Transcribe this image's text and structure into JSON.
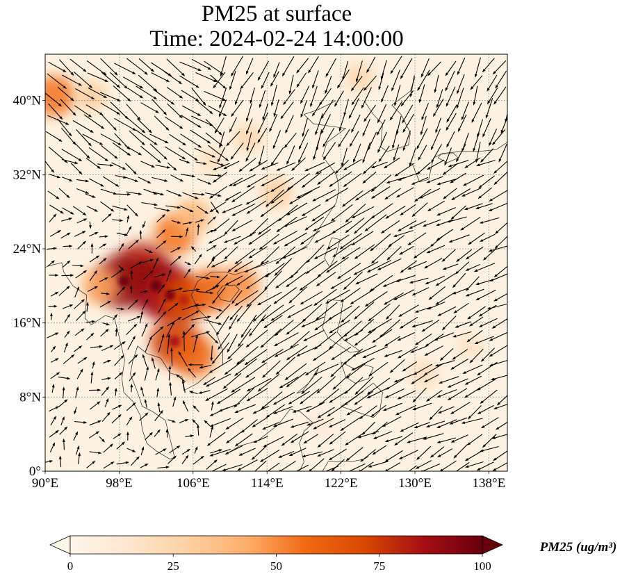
{
  "title": {
    "line1": "PM25 at surface",
    "line2": "Time: 2024-02-24 14:00:00"
  },
  "map": {
    "lon_range": [
      90,
      140
    ],
    "lat_range": [
      0,
      45
    ],
    "lon_ticks": [
      {
        "value": 90,
        "label": "90°E"
      },
      {
        "value": 98,
        "label": "98°E"
      },
      {
        "value": 106,
        "label": "106°E"
      },
      {
        "value": 114,
        "label": "114°E"
      },
      {
        "value": 122,
        "label": "122°E"
      },
      {
        "value": 130,
        "label": "130°E"
      },
      {
        "value": 138,
        "label": "138°E"
      }
    ],
    "lat_ticks": [
      {
        "value": 0,
        "label": "0°"
      },
      {
        "value": 8,
        "label": "8°N"
      },
      {
        "value": 16,
        "label": "16°N"
      },
      {
        "value": 24,
        "label": "24°N"
      },
      {
        "value": 32,
        "label": "32°N"
      },
      {
        "value": 40,
        "label": "40°N"
      }
    ],
    "gridlines": true,
    "background_color": "#fdf2e2",
    "hotspots": [
      {
        "lon": 91,
        "lat": 40.5,
        "value": 55
      },
      {
        "lon": 95,
        "lat": 40.5,
        "value": 30
      },
      {
        "lon": 104,
        "lat": 25.5,
        "value": 55
      },
      {
        "lon": 106,
        "lat": 27.5,
        "value": 40
      },
      {
        "lon": 100.5,
        "lat": 22.0,
        "value": 80
      },
      {
        "lon": 102,
        "lat": 20.0,
        "value": 90
      },
      {
        "lon": 98.5,
        "lat": 20.5,
        "value": 90
      },
      {
        "lon": 103.5,
        "lat": 19.0,
        "value": 85
      },
      {
        "lon": 105,
        "lat": 18.5,
        "value": 70
      },
      {
        "lon": 108,
        "lat": 19.5,
        "value": 60
      },
      {
        "lon": 111,
        "lat": 20.0,
        "value": 50
      },
      {
        "lon": 104,
        "lat": 14.0,
        "value": 75
      },
      {
        "lon": 106,
        "lat": 12.5,
        "value": 60
      },
      {
        "lon": 96,
        "lat": 20.0,
        "value": 45
      },
      {
        "lon": 115,
        "lat": 30.0,
        "value": 30
      },
      {
        "lon": 112,
        "lat": 36.0,
        "value": 25
      },
      {
        "lon": 108,
        "lat": 33.5,
        "value": 20
      },
      {
        "lon": 124,
        "lat": 42.5,
        "value": 25
      },
      {
        "lon": 131,
        "lat": 10.5,
        "value": 22
      },
      {
        "lon": 136,
        "lat": 13.5,
        "value": 18
      },
      {
        "lon": 120,
        "lat": 5.0,
        "value": 12
      }
    ],
    "coastlines": [
      {
        "name": "asia-east-coast",
        "points": [
          [
            121.5,
            40
          ],
          [
            119.5,
            39
          ],
          [
            118,
            38.5
          ],
          [
            119,
            37.5
          ],
          [
            122.5,
            37
          ],
          [
            120.5,
            35.5
          ],
          [
            120,
            34
          ],
          [
            121.5,
            32
          ],
          [
            121.8,
            30.5
          ],
          [
            121.5,
            29
          ],
          [
            120.5,
            27.5
          ],
          [
            119.5,
            26
          ],
          [
            118.5,
            24.5
          ],
          [
            117,
            23.5
          ],
          [
            115,
            22.8
          ],
          [
            113.5,
            22.2
          ],
          [
            112,
            21.7
          ],
          [
            110.5,
            21.2
          ],
          [
            109.5,
            21.5
          ],
          [
            108,
            21.5
          ],
          [
            106.5,
            20.5
          ],
          [
            105.8,
            19
          ],
          [
            106.5,
            17.5
          ],
          [
            107.5,
            16.5
          ],
          [
            108.5,
            15
          ],
          [
            109.2,
            13
          ],
          [
            109.2,
            11.5
          ],
          [
            108,
            10.8
          ],
          [
            106.5,
            9.5
          ],
          [
            105,
            8.7
          ],
          [
            104.8,
            10.2
          ],
          [
            103.5,
            10.6
          ],
          [
            102.5,
            12.2
          ],
          [
            101,
            12.7
          ],
          [
            100,
            13.5
          ],
          [
            99.5,
            12
          ],
          [
            99.2,
            10.5
          ],
          [
            100,
            8.5
          ],
          [
            100.5,
            7
          ],
          [
            101.5,
            6.5
          ],
          [
            103,
            5.5
          ],
          [
            103.5,
            3.5
          ],
          [
            104,
            1.5
          ],
          [
            103.5,
            1.3
          ],
          [
            102,
            2.2
          ],
          [
            101,
            3
          ],
          [
            100.5,
            4.5
          ],
          [
            100.3,
            6
          ],
          [
            99.5,
            7.5
          ],
          [
            98.5,
            8.5
          ],
          [
            98.3,
            10
          ],
          [
            98.6,
            12
          ],
          [
            98,
            14.5
          ],
          [
            97.5,
            16.5
          ],
          [
            96.5,
            16.8
          ],
          [
            95,
            15.8
          ],
          [
            94.3,
            16.5
          ],
          [
            94.5,
            19
          ],
          [
            93,
            20
          ],
          [
            92,
            21.5
          ],
          [
            91.8,
            22.5
          ],
          [
            90.5,
            22.2
          ],
          [
            90,
            22
          ]
        ]
      },
      {
        "name": "hainan",
        "points": [
          [
            108.6,
            19.2
          ],
          [
            109.2,
            20
          ],
          [
            110.5,
            20.1
          ],
          [
            111,
            19.6
          ],
          [
            110,
            18.3
          ],
          [
            109,
            18.5
          ],
          [
            108.6,
            19.2
          ]
        ]
      },
      {
        "name": "taiwan",
        "points": [
          [
            121,
            25.2
          ],
          [
            121.9,
            25
          ],
          [
            121.5,
            23.5
          ],
          [
            120.8,
            22
          ],
          [
            120.2,
            23
          ],
          [
            121,
            25.2
          ]
        ]
      },
      {
        "name": "luzon",
        "points": [
          [
            120.6,
            18.5
          ],
          [
            122.2,
            18.4
          ],
          [
            122,
            16.8
          ],
          [
            121.6,
            15
          ],
          [
            122.3,
            14.2
          ],
          [
            124,
            13
          ],
          [
            123,
            12.8
          ],
          [
            121.5,
            13.8
          ],
          [
            120.6,
            14.4
          ],
          [
            120,
            15.5
          ],
          [
            120.3,
            16.8
          ],
          [
            120.6,
            18.5
          ]
        ]
      },
      {
        "name": "mindanao",
        "points": [
          [
            122,
            7
          ],
          [
            123.5,
            8
          ],
          [
            125.5,
            9.5
          ],
          [
            126.5,
            8.5
          ],
          [
            126.2,
            6.5
          ],
          [
            125.5,
            5.8
          ],
          [
            124,
            6.3
          ],
          [
            122,
            7
          ]
        ]
      },
      {
        "name": "visayas",
        "points": [
          [
            122,
            11.8
          ],
          [
            123.5,
            11
          ],
          [
            124.5,
            11.5
          ],
          [
            125.5,
            11.2
          ],
          [
            125,
            10
          ],
          [
            123.5,
            9.5
          ],
          [
            122.5,
            10.2
          ],
          [
            122,
            11.8
          ]
        ]
      },
      {
        "name": "palawan",
        "points": [
          [
            117.2,
            8.4
          ],
          [
            118.5,
            9.5
          ],
          [
            119.6,
            11.2
          ],
          [
            119.3,
            10.5
          ],
          [
            117.8,
            8.6
          ],
          [
            117.2,
            8.4
          ]
        ]
      },
      {
        "name": "borneo-north",
        "points": [
          [
            109.5,
            1.8
          ],
          [
            111,
            2.7
          ],
          [
            113,
            3.3
          ],
          [
            115.2,
            5
          ],
          [
            116.5,
            6.7
          ],
          [
            117.6,
            6.4
          ],
          [
            119,
            5.2
          ],
          [
            118,
            4.3
          ],
          [
            117.5,
            3
          ],
          [
            118,
            1
          ],
          [
            117.5,
            0
          ]
        ]
      },
      {
        "name": "korea",
        "points": [
          [
            124.5,
            40
          ],
          [
            125.5,
            38.5
          ],
          [
            126.5,
            37.5
          ],
          [
            126.3,
            35
          ],
          [
            127,
            34.5
          ],
          [
            129.3,
            35.2
          ],
          [
            129.5,
            36.5
          ],
          [
            128.5,
            38.5
          ],
          [
            127.5,
            39.5
          ],
          [
            129.5,
            41
          ],
          [
            130,
            42.5
          ]
        ]
      },
      {
        "name": "kyushu-honshu",
        "points": [
          [
            129.7,
            33.2
          ],
          [
            130.5,
            31.2
          ],
          [
            131.5,
            31.5
          ],
          [
            132,
            33.8
          ],
          [
            133,
            34.3
          ],
          [
            135,
            34.5
          ],
          [
            136.8,
            34.5
          ],
          [
            138.8,
            34.7
          ],
          [
            140,
            35.5
          ]
        ]
      },
      {
        "name": "shikoku",
        "points": [
          [
            132.5,
            33.8
          ],
          [
            133.5,
            33.3
          ],
          [
            134.7,
            33.8
          ],
          [
            134.2,
            34.3
          ],
          [
            132.8,
            34.2
          ],
          [
            132.5,
            33.8
          ]
        ]
      },
      {
        "name": "sulawesi",
        "points": [
          [
            120,
            0
          ],
          [
            120.6,
            1
          ],
          [
            123,
            1
          ],
          [
            124.5,
            1.3
          ],
          [
            125,
            1.6
          ]
        ]
      }
    ],
    "wind_vortex": {
      "lon": 106.5,
      "lat": 13.5
    }
  },
  "colorbar": {
    "label": "PM25 (ug/m³)",
    "range": [
      0,
      100
    ],
    "extend": "both",
    "ticks": [
      {
        "value": 0,
        "label": "0"
      },
      {
        "value": 25,
        "label": "25"
      },
      {
        "value": 50,
        "label": "50"
      },
      {
        "value": 75,
        "label": "75"
      },
      {
        "value": 100,
        "label": "100"
      }
    ],
    "colors": [
      "#fff5eb",
      "#fee6ce",
      "#fdd0a2",
      "#fdae6b",
      "#f16913",
      "#d94801",
      "#a50f15",
      "#67000d"
    ]
  }
}
